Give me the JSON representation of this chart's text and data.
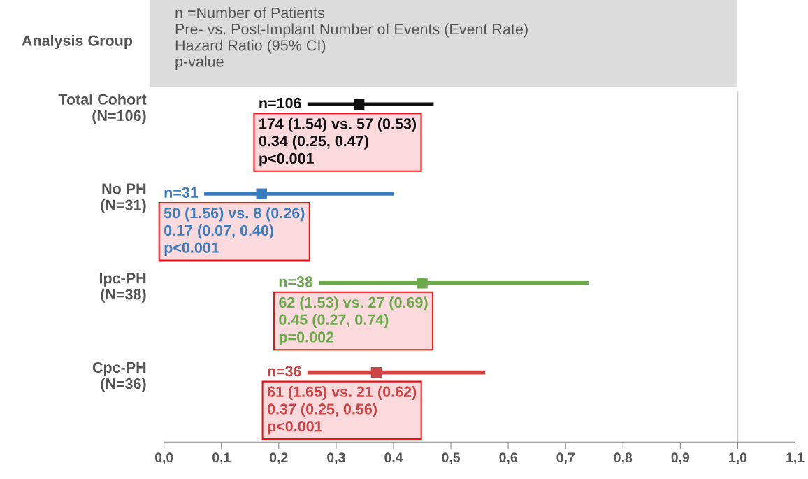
{
  "chart_data": {
    "type": "scatter",
    "orientation": "horizontal",
    "title": "n =Number of Patients\nPre- vs. Post-Implant Number of Events (Event Rate)\nHazard Ratio (95% CI)\np-value",
    "ylabel": "Analysis Group",
    "categories": [
      "Total Cohort\n(N=106)",
      "No PH\n(N=31)",
      "Ipc-PH\n(N=38)",
      "Cpc-PH\n(N=36)"
    ],
    "values": [
      0.34,
      0.17,
      0.45,
      0.37
    ],
    "errors": [
      [
        0.25,
        0.47
      ],
      [
        0.07,
        0.4
      ],
      [
        0.27,
        0.74
      ],
      [
        0.25,
        0.56
      ]
    ],
    "colors": [
      "#111111",
      "#3a7dbf",
      "#6aaa4a",
      "#cc4444"
    ],
    "annotations": [
      "n=106",
      "174 (1.54) vs. 57 (0.53)\n0.34 (0.25, 0.47)\np<0.001",
      "n=31",
      "50 (1.56) vs. 8 (0.26)\n0.17 (0.07, 0.40)\np<0.001",
      "n=38",
      "62 (1.53) vs. 27 (0.69)\n0.45 (0.27, 0.74)\np=0.002",
      "n=36",
      "61 (1.65) vs. 21 (0.62)\n0.37 (0.25, 0.56)\np<0.001"
    ],
    "marker": "square",
    "xlim": [
      0,
      1.1
    ],
    "xticks": [
      {
        "value": 0,
        "label": "0,0"
      },
      {
        "value": 0.1,
        "label": "0,1"
      },
      {
        "value": 0.2,
        "label": "0,2"
      },
      {
        "value": 0.3,
        "label": "0,3"
      },
      {
        "value": 0.4,
        "label": "0,4"
      },
      {
        "value": 0.5,
        "label": "0,5"
      },
      {
        "value": 0.6,
        "label": "0,6"
      },
      {
        "value": 0.7,
        "label": "0,7"
      },
      {
        "value": 0.8,
        "label": "0,8"
      },
      {
        "value": 0.9,
        "label": "0,9"
      },
      {
        "value": 1.0,
        "label": "1,0"
      },
      {
        "value": 1.1,
        "label": "1,1"
      }
    ],
    "ref_lines": [
      {
        "axis": "x",
        "value": 1.0,
        "label": null,
        "color": "#cccccc"
      }
    ],
    "grid": false
  }
}
